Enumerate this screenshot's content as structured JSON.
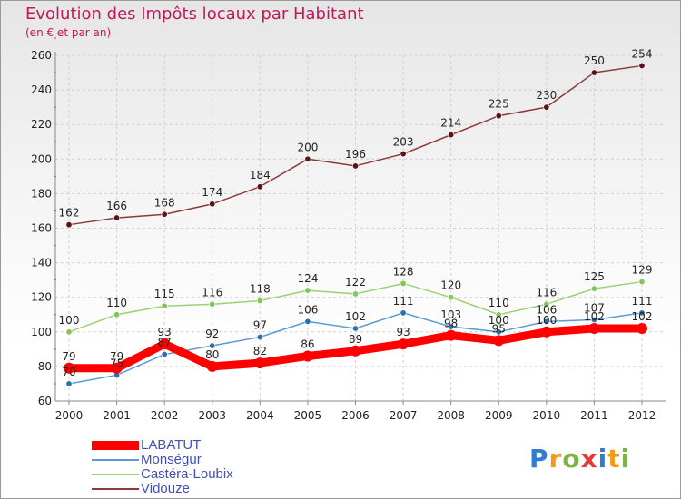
{
  "header": {
    "title": "Evolution des Impôts locaux par Habitant",
    "subtitle": "(en € et par an)"
  },
  "brand": {
    "name": "Proxiti",
    "letters": [
      "P",
      "r",
      "o",
      "x",
      "i",
      "t",
      "i"
    ],
    "letter_colors": [
      "#2e7dd1",
      "#f29b1d",
      "#7cb342",
      "#e53935",
      "#2e7dd1",
      "#f29b1d",
      "#7cb342"
    ]
  },
  "chart_data": {
    "type": "line",
    "title": "Evolution des Impôts locaux par Habitant",
    "subtitle": "(en € et par an)",
    "xlabel": "",
    "ylabel": "",
    "x": [
      "2000",
      "2001",
      "2002",
      "2003",
      "2004",
      "2005",
      "2006",
      "2007",
      "2008",
      "2009",
      "2010",
      "2011",
      "2012"
    ],
    "ylim": [
      60,
      260
    ],
    "y_ticks": [
      60,
      80,
      100,
      120,
      140,
      160,
      180,
      200,
      220,
      240,
      260
    ],
    "grid": true,
    "legend_position": "bottom-left",
    "series": [
      {
        "name": "LABATUT",
        "color": "#ff0000",
        "values": [
          79,
          79,
          93,
          80,
          82,
          86,
          89,
          93,
          98,
          95,
          100,
          102,
          102
        ],
        "labels": [
          "79",
          "79",
          "93",
          "80",
          "82",
          "86",
          "89",
          "93",
          "98",
          "95",
          "100",
          "102",
          "102"
        ]
      },
      {
        "name": "Monségur",
        "color": "#5a9bd5",
        "values": [
          70,
          75,
          87,
          92,
          97,
          106,
          102,
          111,
          103,
          100,
          106,
          107,
          111
        ],
        "labels": [
          "70",
          "75",
          "87",
          "92",
          "97",
          "106",
          "102",
          "111",
          "103",
          "100",
          "106",
          "107",
          "111"
        ]
      },
      {
        "name": "Castéra-Loubix",
        "color": "#9bd174",
        "values": [
          100,
          110,
          115,
          116,
          118,
          124,
          122,
          128,
          120,
          110,
          116,
          125,
          129
        ],
        "labels": [
          "100",
          "110",
          "115",
          "116",
          "118",
          "124",
          "122",
          "128",
          "120",
          "110",
          "116",
          "125",
          "129"
        ]
      },
      {
        "name": "Vidouze",
        "color": "#8b3a3a",
        "values": [
          162,
          166,
          168,
          174,
          184,
          200,
          196,
          203,
          214,
          225,
          230,
          250,
          254
        ],
        "labels": [
          "162",
          "166",
          "168",
          "174",
          "184",
          "200",
          "196",
          "203",
          "214",
          "225",
          "230",
          "250",
          "254"
        ]
      }
    ]
  }
}
